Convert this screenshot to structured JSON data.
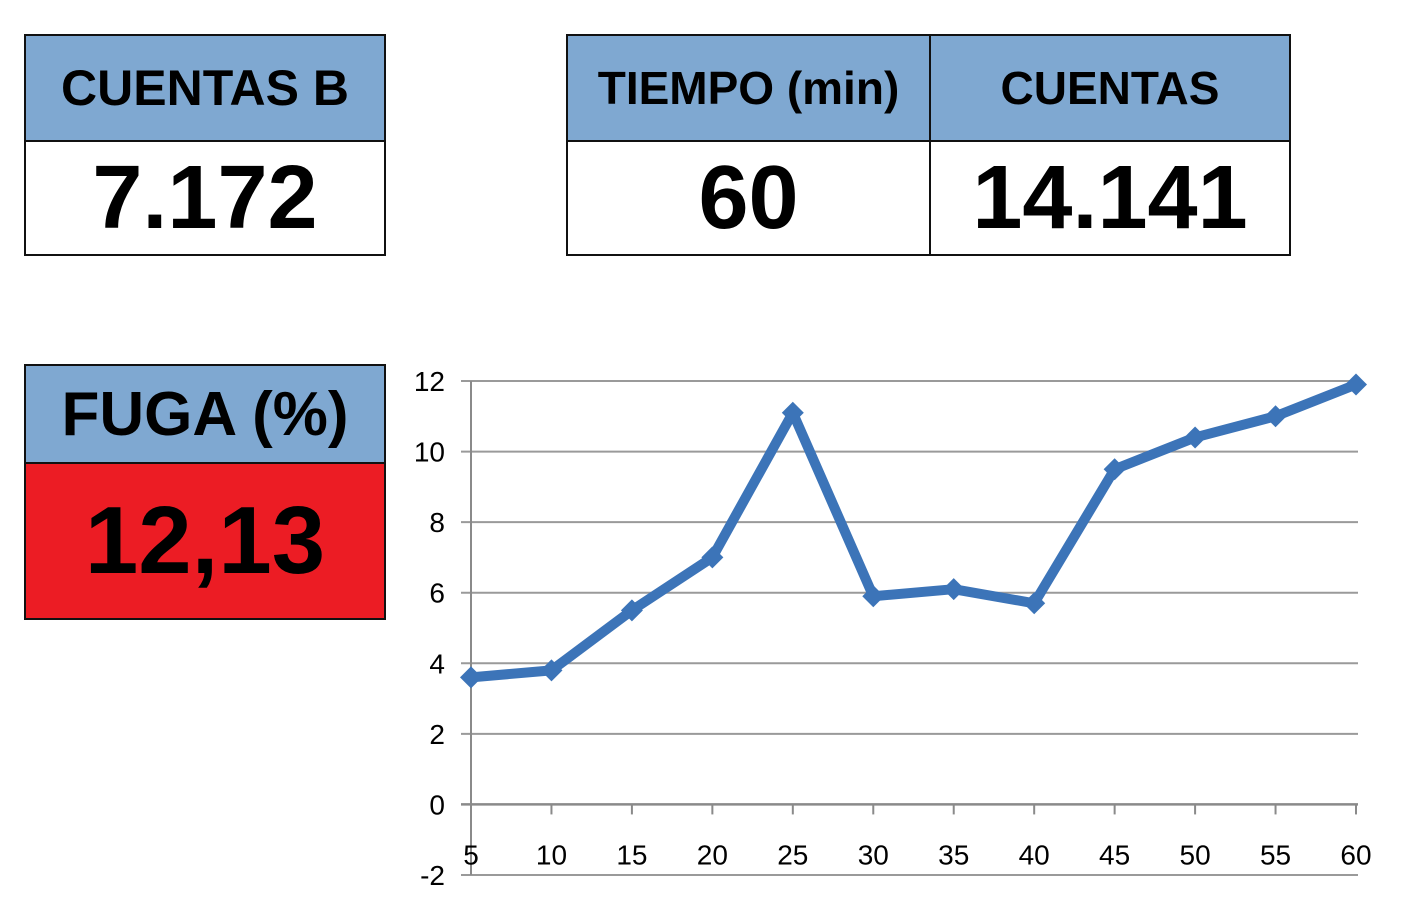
{
  "cuentas_b": {
    "label": "CUENTAS B",
    "value": "7.172"
  },
  "tiempo": {
    "label": "TIEMPO (min)",
    "value": "60"
  },
  "cuentas": {
    "label": "CUENTAS",
    "value": "14.141"
  },
  "fuga": {
    "label": "FUGA (%)",
    "value": "12,13"
  },
  "colors": {
    "header": "#7fa8d1",
    "alert": "#ec1c24",
    "series": "#3c74b8"
  },
  "chart_data": {
    "type": "line",
    "title": "",
    "xlabel": "",
    "ylabel": "",
    "x": [
      5,
      10,
      15,
      20,
      25,
      30,
      35,
      40,
      45,
      50,
      55,
      60
    ],
    "series": [
      {
        "values": [
          3.6,
          3.8,
          5.5,
          7.0,
          11.1,
          5.9,
          6.1,
          5.7,
          9.5,
          10.4,
          11.0,
          11.9
        ]
      }
    ],
    "ylim": [
      -2,
      12
    ],
    "yticks": [
      "12",
      "10",
      "8",
      "6",
      "4",
      "2",
      "0",
      "-2"
    ],
    "xticks": [
      "5",
      "10",
      "15",
      "20",
      "25",
      "30",
      "35",
      "40",
      "45",
      "50",
      "55",
      "60"
    ],
    "grid": true
  }
}
